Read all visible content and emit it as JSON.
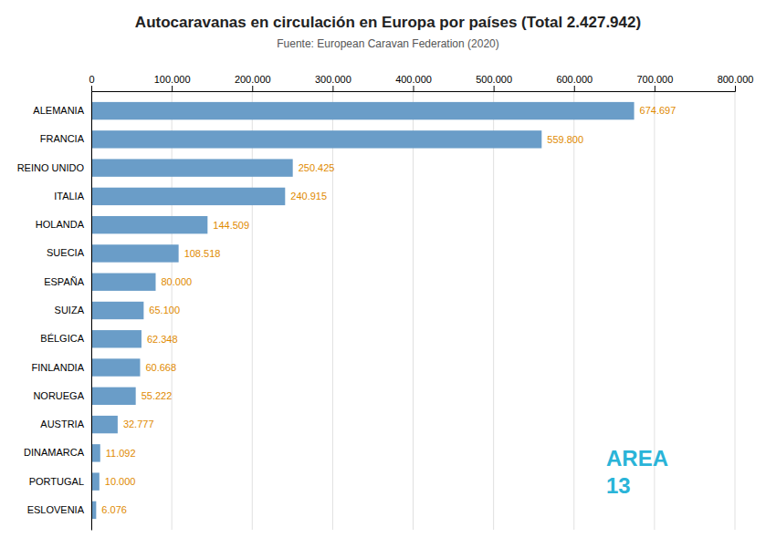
{
  "chart_data": {
    "type": "bar",
    "orientation": "horizontal",
    "title": "Autocaravanas en circulación en Europa por países (Total 2.427.942)",
    "subtitle": "Fuente: European Caravan Federation (2020)",
    "categories": [
      "ESLOVENIA",
      "PORTUGAL",
      "DINAMARCA",
      "AUSTRIA",
      "NORUEGA",
      "FINLANDIA",
      "BÉLGICA",
      "SUIZA",
      "ESPAÑA",
      "SUECIA",
      "HOLANDA",
      "ITALIA",
      "REINO UNIDO",
      "FRANCIA",
      "ALEMANIA"
    ],
    "values": [
      6076,
      10000,
      11092,
      32777,
      55222,
      60668,
      62348,
      65100,
      80000,
      108518,
      144509,
      240915,
      250425,
      559800,
      674697
    ],
    "value_labels": [
      "6.076",
      "10.000",
      "11.092",
      "32.777",
      "55.222",
      "60.668",
      "62.348",
      "65.100",
      "80.000",
      "108.518",
      "144.509",
      "240.915",
      "250.425",
      "559.800",
      "674.697"
    ],
    "data_labels": true,
    "color": "#6a9dc8",
    "xlim": [
      0,
      800000
    ],
    "xticks": [
      0,
      {
        "value": 100000,
        "label": "100.000"
      },
      {
        "value": 200000,
        "label": "200.000"
      },
      {
        "value": 300000,
        "label": "300.000"
      },
      {
        "value": 400000,
        "label": "400.000"
      },
      {
        "value": 500000,
        "label": "500.000"
      },
      {
        "value": 600000,
        "label": "600.000"
      },
      {
        "value": 700000,
        "label": "700.000"
      },
      {
        "value": 800000,
        "label": "800.000"
      }
    ],
    "grid": true,
    "annotations": [
      "AREA",
      "13"
    ]
  }
}
